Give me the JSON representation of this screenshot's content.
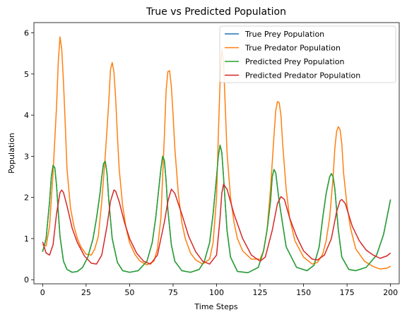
{
  "chart_data": {
    "type": "line",
    "title": "True vs Predicted Population",
    "xlabel": "Time Steps",
    "ylabel": "Population",
    "xlim": [
      -5,
      205
    ],
    "ylim": [
      -0.1,
      6.25
    ],
    "xticks": [
      0,
      25,
      50,
      75,
      100,
      125,
      150,
      175,
      200
    ],
    "yticks": [
      0,
      1,
      2,
      3,
      4,
      5,
      6
    ],
    "grid": false,
    "legend_placement": "top-right",
    "series": [
      {
        "name": "True Prey Population",
        "color": "#1f77b4",
        "x": [
          0,
          2,
          4,
          5,
          6,
          7,
          8,
          9,
          10,
          12,
          14,
          17,
          20,
          23,
          26,
          29,
          31,
          33,
          34,
          35,
          36,
          37,
          38,
          40,
          43,
          46,
          50,
          55,
          60,
          63,
          65,
          67,
          68,
          69,
          70,
          71,
          72,
          74,
          76,
          80,
          85,
          90,
          93,
          96,
          98,
          100,
          101,
          102,
          103,
          104,
          106,
          108,
          112,
          118,
          124,
          127,
          129,
          131,
          132,
          133,
          134,
          136,
          140,
          146,
          152,
          156,
          159,
          161,
          163,
          165,
          166,
          167,
          168,
          170,
          172,
          176,
          180,
          186,
          192,
          196,
          200
        ],
        "y": [
          0.68,
          1.0,
          1.9,
          2.5,
          2.78,
          2.72,
          2.3,
          1.65,
          1.05,
          0.45,
          0.25,
          0.18,
          0.2,
          0.3,
          0.55,
          1.0,
          1.5,
          2.1,
          2.5,
          2.82,
          2.88,
          2.6,
          1.95,
          1.0,
          0.42,
          0.22,
          0.18,
          0.22,
          0.45,
          0.9,
          1.5,
          2.3,
          2.7,
          3.0,
          2.9,
          2.4,
          1.7,
          0.85,
          0.45,
          0.22,
          0.18,
          0.25,
          0.45,
          0.9,
          1.6,
          2.5,
          3.0,
          3.27,
          3.1,
          2.5,
          1.2,
          0.55,
          0.2,
          0.17,
          0.3,
          0.7,
          1.2,
          1.9,
          2.5,
          2.68,
          2.6,
          1.9,
          0.8,
          0.3,
          0.22,
          0.35,
          0.8,
          1.5,
          2.1,
          2.5,
          2.58,
          2.5,
          2.2,
          1.2,
          0.55,
          0.25,
          0.22,
          0.3,
          0.6,
          1.1,
          1.95
        ]
      },
      {
        "name": "True Predator Population",
        "color": "#ff7f0e",
        "x": [
          0,
          2,
          4,
          6,
          8,
          9,
          10,
          11,
          12,
          13,
          14,
          16,
          18,
          20,
          22,
          25,
          28,
          30,
          32,
          34,
          36,
          38,
          39,
          40,
          41,
          42,
          43,
          44,
          46,
          48,
          50,
          53,
          56,
          60,
          64,
          66,
          68,
          70,
          71,
          72,
          73,
          74,
          75,
          76,
          78,
          80,
          82,
          85,
          88,
          92,
          96,
          98,
          100,
          101,
          102,
          103,
          104,
          105,
          106,
          108,
          110,
          112,
          115,
          120,
          125,
          127,
          129,
          131,
          133,
          134,
          135,
          136,
          137,
          138,
          140,
          142,
          145,
          150,
          155,
          158,
          161,
          163,
          165,
          167,
          168,
          169,
          170,
          171,
          172,
          173,
          175,
          177,
          180,
          185,
          190,
          194,
          198,
          200
        ],
        "y": [
          0.85,
          0.82,
          1.3,
          2.6,
          4.2,
          5.3,
          5.9,
          5.6,
          4.8,
          3.8,
          2.7,
          1.75,
          1.3,
          1.0,
          0.8,
          0.62,
          0.6,
          0.75,
          1.05,
          1.9,
          3.0,
          4.3,
          5.1,
          5.28,
          5.05,
          4.4,
          3.5,
          2.7,
          1.8,
          1.25,
          0.9,
          0.62,
          0.45,
          0.36,
          0.45,
          0.75,
          1.5,
          3.5,
          4.6,
          5.06,
          5.08,
          4.7,
          4.0,
          3.2,
          2.1,
          1.4,
          1.0,
          0.65,
          0.48,
          0.38,
          0.5,
          0.9,
          2.0,
          3.5,
          4.8,
          5.6,
          5.3,
          4.2,
          3.1,
          2.0,
          1.4,
          1.0,
          0.7,
          0.5,
          0.5,
          0.7,
          1.2,
          2.2,
          3.5,
          4.1,
          4.33,
          4.3,
          4.0,
          3.3,
          2.2,
          1.5,
          0.95,
          0.55,
          0.38,
          0.42,
          0.62,
          0.95,
          1.5,
          2.5,
          3.2,
          3.6,
          3.72,
          3.65,
          3.3,
          2.6,
          1.8,
          1.25,
          0.75,
          0.45,
          0.32,
          0.26,
          0.28,
          0.33
        ]
      },
      {
        "name": "Predicted Prey Population",
        "color": "#2ca02c",
        "x": [
          0,
          2,
          4,
          5,
          6,
          7,
          8,
          9,
          10,
          12,
          14,
          17,
          20,
          23,
          26,
          29,
          31,
          33,
          34,
          35,
          36,
          37,
          38,
          40,
          43,
          46,
          50,
          55,
          60,
          63,
          65,
          67,
          68,
          69,
          70,
          71,
          72,
          74,
          76,
          80,
          85,
          90,
          93,
          96,
          98,
          100,
          101,
          102,
          103,
          104,
          106,
          108,
          112,
          118,
          124,
          127,
          129,
          131,
          132,
          133,
          134,
          136,
          140,
          146,
          152,
          156,
          159,
          161,
          163,
          165,
          166,
          167,
          168,
          170,
          172,
          176,
          180,
          186,
          192,
          196,
          200
        ],
        "y": [
          0.68,
          1.0,
          1.9,
          2.5,
          2.78,
          2.72,
          2.3,
          1.65,
          1.05,
          0.45,
          0.25,
          0.18,
          0.2,
          0.3,
          0.55,
          1.0,
          1.5,
          2.1,
          2.5,
          2.82,
          2.88,
          2.6,
          1.95,
          1.0,
          0.42,
          0.22,
          0.18,
          0.22,
          0.45,
          0.9,
          1.5,
          2.3,
          2.7,
          3.0,
          2.9,
          2.4,
          1.7,
          0.85,
          0.45,
          0.22,
          0.18,
          0.25,
          0.45,
          0.9,
          1.6,
          2.5,
          3.0,
          3.27,
          3.1,
          2.5,
          1.2,
          0.55,
          0.2,
          0.17,
          0.3,
          0.7,
          1.2,
          1.9,
          2.5,
          2.68,
          2.6,
          1.9,
          0.8,
          0.3,
          0.22,
          0.35,
          0.8,
          1.5,
          2.1,
          2.5,
          2.58,
          2.5,
          2.2,
          1.2,
          0.55,
          0.25,
          0.22,
          0.3,
          0.6,
          1.1,
          1.95
        ]
      },
      {
        "name": "Predicted Predator Population",
        "color": "#d62728",
        "x": [
          0,
          2,
          4,
          6,
          8,
          10,
          11,
          12,
          14,
          17,
          20,
          24,
          28,
          31,
          34,
          37,
          39,
          41,
          42,
          44,
          47,
          50,
          54,
          58,
          62,
          66,
          70,
          72,
          74,
          76,
          80,
          84,
          88,
          92,
          96,
          100,
          102,
          103,
          104,
          106,
          110,
          115,
          120,
          125,
          128,
          132,
          135,
          137,
          139,
          142,
          146,
          150,
          155,
          158,
          162,
          166,
          169,
          171,
          172,
          174,
          178,
          182,
          186,
          190,
          194,
          198,
          200
        ],
        "y": [
          0.92,
          0.65,
          0.6,
          0.85,
          1.6,
          2.12,
          2.18,
          2.12,
          1.8,
          1.25,
          0.9,
          0.58,
          0.4,
          0.38,
          0.6,
          1.3,
          1.9,
          2.18,
          2.15,
          1.9,
          1.4,
          1.0,
          0.65,
          0.45,
          0.38,
          0.6,
          1.4,
          1.9,
          2.2,
          2.1,
          1.6,
          1.05,
          0.68,
          0.45,
          0.38,
          0.6,
          1.5,
          2.1,
          2.32,
          2.2,
          1.6,
          1.0,
          0.6,
          0.45,
          0.55,
          1.2,
          1.85,
          2.02,
          1.95,
          1.5,
          1.05,
          0.7,
          0.5,
          0.48,
          0.6,
          1.0,
          1.65,
          1.92,
          1.95,
          1.85,
          1.3,
          0.95,
          0.72,
          0.6,
          0.52,
          0.58,
          0.65
        ]
      }
    ]
  }
}
